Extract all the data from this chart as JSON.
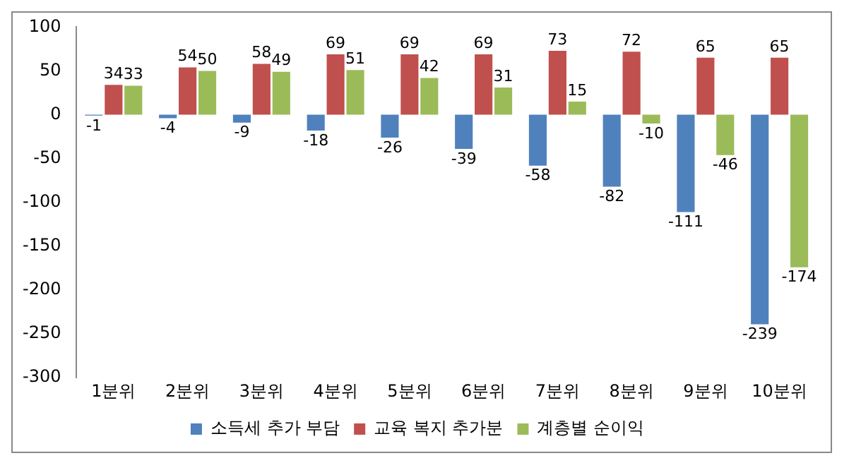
{
  "chart_data": {
    "type": "bar",
    "categories": [
      "1분위",
      "2분위",
      "3분위",
      "4분위",
      "5분위",
      "6분위",
      "7분위",
      "8분위",
      "9분위",
      "10분위"
    ],
    "series": [
      {
        "name": "소득세 추가 부담",
        "color": "#4f81bd",
        "values": [
          -1,
          -4,
          -9,
          -18,
          -26,
          -39,
          -58,
          -82,
          -111,
          -239
        ]
      },
      {
        "name": "교육 복지 추가분",
        "color": "#c0504d",
        "values": [
          34,
          54,
          58,
          69,
          69,
          69,
          73,
          72,
          65,
          65
        ]
      },
      {
        "name": "계층별 순이익",
        "color": "#9bbb59",
        "values": [
          33,
          50,
          49,
          51,
          42,
          31,
          15,
          -10,
          -46,
          -174
        ]
      }
    ],
    "ylim": [
      -300,
      100
    ],
    "yticks": [
      -300,
      -250,
      -200,
      -150,
      -100,
      -50,
      0,
      50,
      100
    ],
    "grid": false,
    "legend": "bottom",
    "data_labels": true
  }
}
